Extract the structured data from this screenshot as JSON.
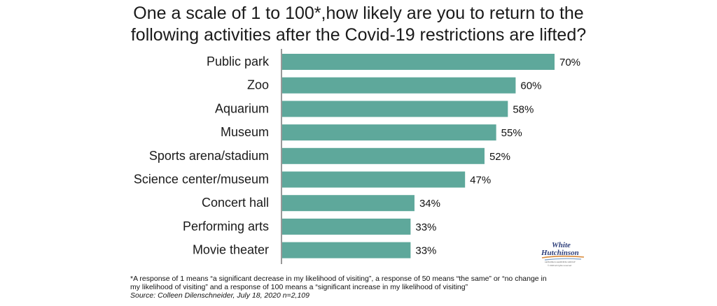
{
  "title": {
    "line1": "One a scale of 1 to 100*,how likely are you to return to the",
    "line2": "following activities after the Covid-19 restrictions are lifted?"
  },
  "chart_data": {
    "type": "bar",
    "orientation": "horizontal",
    "categories": [
      "Public park",
      "Zoo",
      "Aquarium",
      "Museum",
      "Sports arena/stadium",
      "Science center/museum",
      "Concert hall",
      "Performing arts",
      "Movie theater"
    ],
    "values": [
      70,
      60,
      58,
      55,
      52,
      47,
      34,
      33,
      33
    ],
    "data_labels": [
      "70%",
      "60%",
      "58%",
      "55%",
      "52%",
      "47%",
      "34%",
      "33%",
      "33%"
    ],
    "xlim": [
      0,
      70
    ],
    "grid": false,
    "bar_color": "#5ea89b"
  },
  "footnote": {
    "line1": "*A response of 1 means “a significant decrease in my likelihood of visiting”, a response of 50 means “the same” or “no change in",
    "line2": "my likelihood of visiting” and a response of 100 means a “significant increase in my likelihood of visiting”",
    "source": "Source: Colleen Dilenschneider, July 18, 2020 n=2,109"
  },
  "logo": {
    "line1": "White",
    "line2": "Hutchinson",
    "tagline": "LEISURE & LEARNING GROUP",
    "copyright": "© 2020 all rights reserved"
  }
}
